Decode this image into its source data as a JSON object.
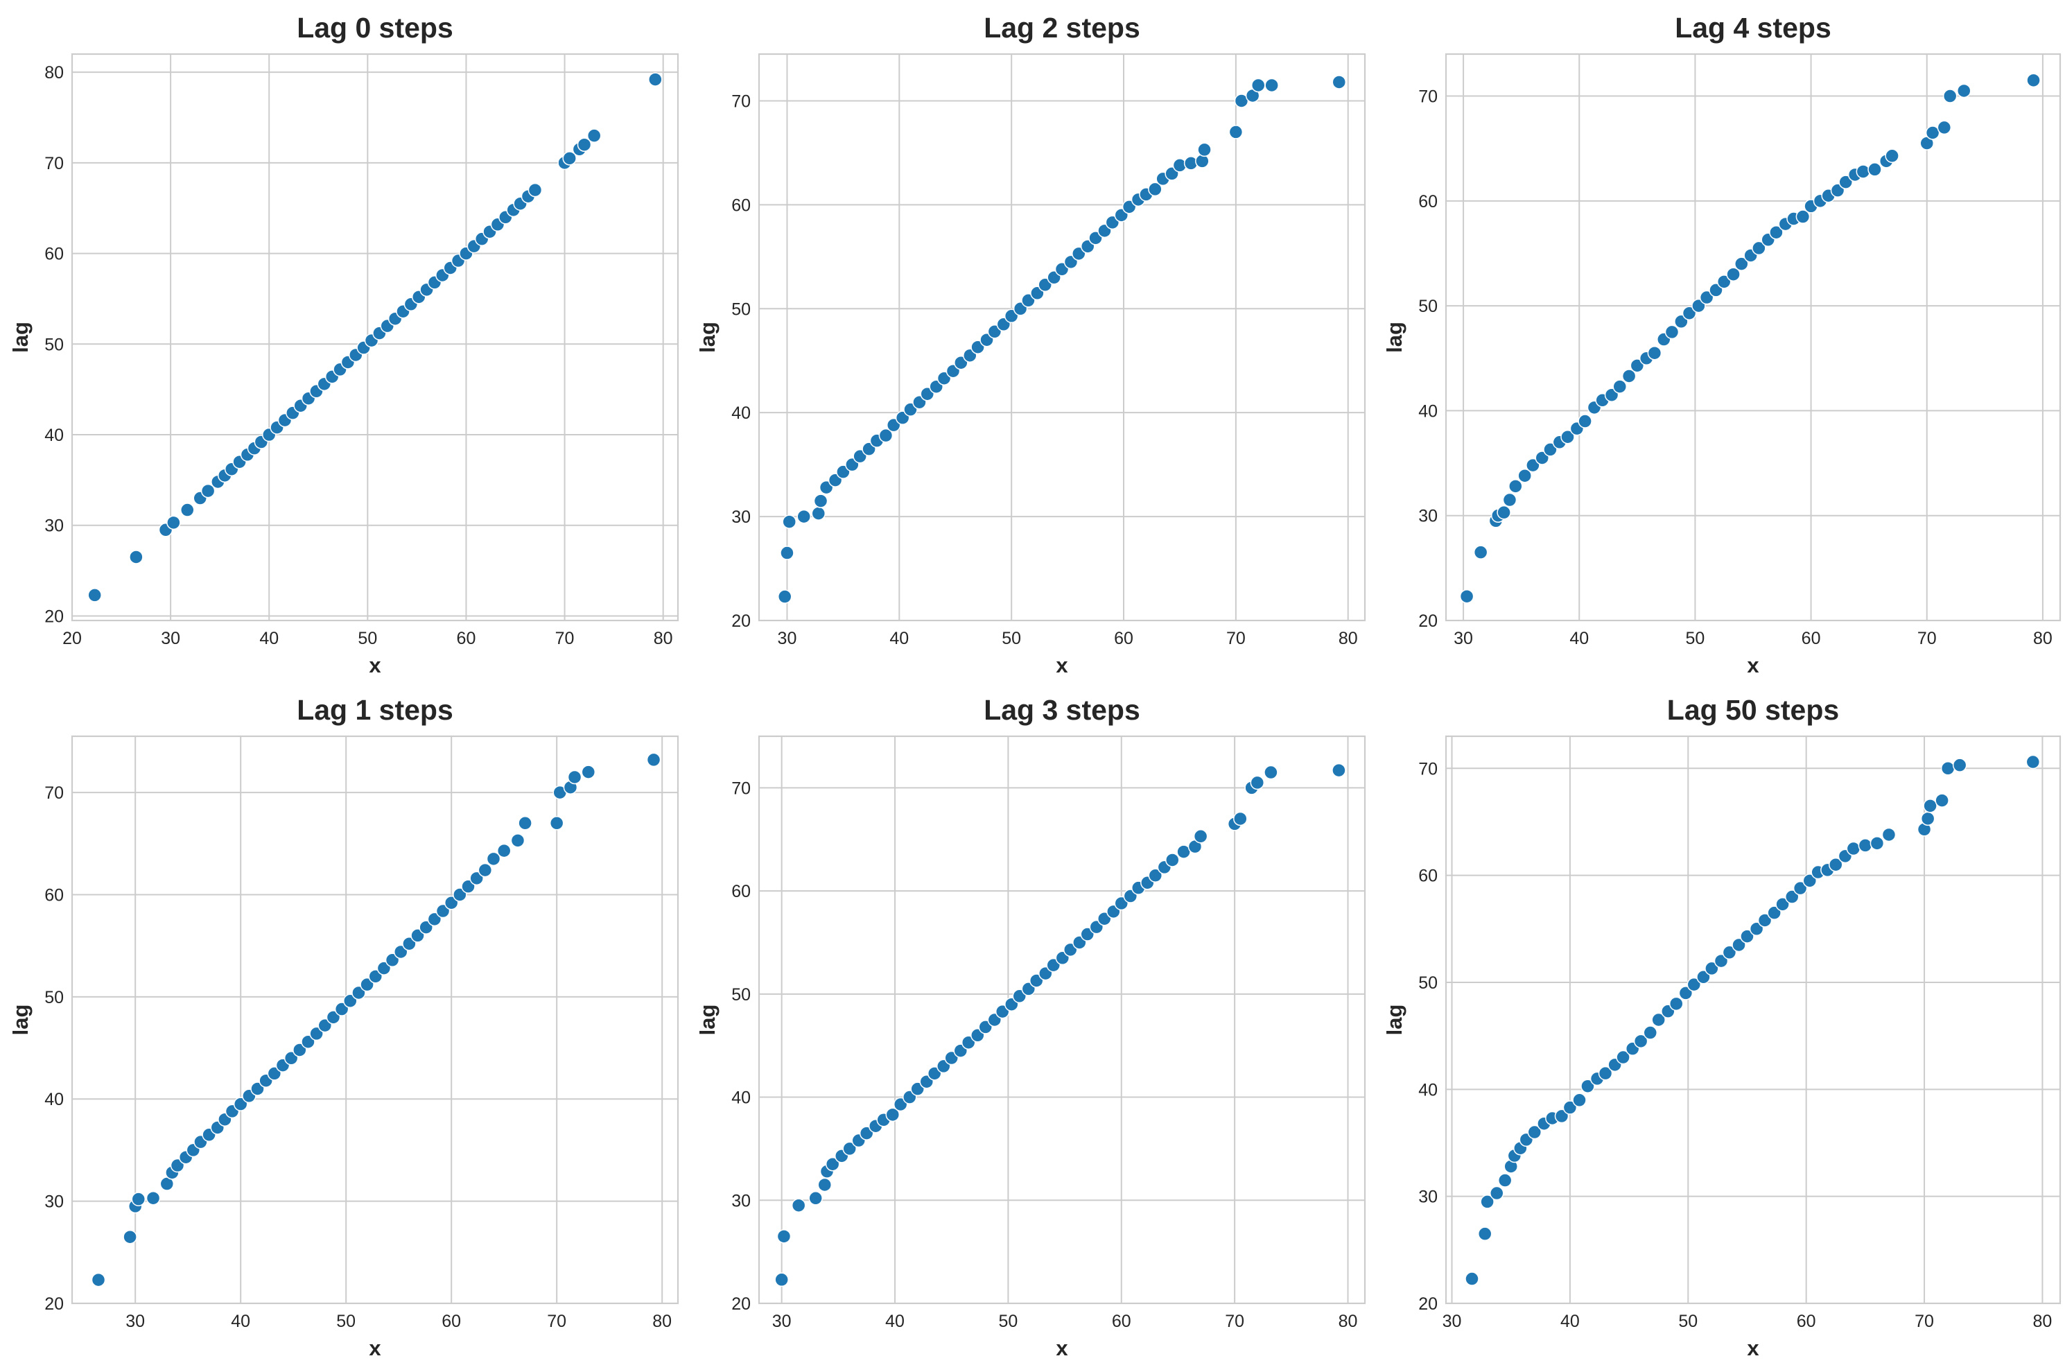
{
  "figure": {
    "background": "#ffffff",
    "marker_color": "#1f77b4",
    "grid_color": "#cccccc"
  },
  "chart_data": [
    {
      "type": "scatter",
      "title": "Lag 0 steps",
      "xlabel": "x",
      "ylabel": "lag",
      "xlim": [
        20,
        81.5
      ],
      "ylim": [
        19.5,
        82
      ],
      "xticks": [
        20,
        30,
        40,
        50,
        60,
        70,
        80
      ],
      "yticks": [
        20,
        30,
        40,
        50,
        60,
        70,
        80
      ],
      "grid": true,
      "x": [
        22.3,
        26.5,
        29.5,
        30.3,
        31.7,
        33.0,
        33.8,
        34.8,
        35.5,
        36.2,
        37.0,
        37.8,
        38.5,
        39.2,
        40.0,
        40.8,
        41.6,
        42.4,
        43.2,
        44.0,
        44.8,
        45.6,
        46.4,
        47.2,
        48.0,
        48.8,
        49.6,
        50.4,
        51.2,
        52.0,
        52.8,
        53.6,
        54.4,
        55.2,
        56.0,
        56.8,
        57.6,
        58.4,
        59.2,
        60.0,
        60.8,
        61.6,
        62.4,
        63.2,
        64.0,
        64.8,
        65.5,
        66.3,
        67.0,
        70.0,
        70.5,
        71.5,
        72.0,
        73.0,
        79.2
      ],
      "y": [
        22.3,
        26.5,
        29.5,
        30.3,
        31.7,
        33.0,
        33.8,
        34.8,
        35.5,
        36.2,
        37.0,
        37.8,
        38.5,
        39.2,
        40.0,
        40.8,
        41.6,
        42.4,
        43.2,
        44.0,
        44.8,
        45.6,
        46.4,
        47.2,
        48.0,
        48.8,
        49.6,
        50.4,
        51.2,
        52.0,
        52.8,
        53.6,
        54.4,
        55.2,
        56.0,
        56.8,
        57.6,
        58.4,
        59.2,
        60.0,
        60.8,
        61.6,
        62.4,
        63.2,
        64.0,
        64.8,
        65.5,
        66.3,
        67.0,
        70.0,
        70.5,
        71.5,
        72.0,
        73.0,
        79.2
      ]
    },
    {
      "type": "scatter",
      "title": "Lag 2 steps",
      "xlabel": "x",
      "ylabel": "lag",
      "xlim": [
        27.5,
        81.5
      ],
      "ylim": [
        20,
        74.5
      ],
      "xticks": [
        30,
        40,
        50,
        60,
        70,
        80
      ],
      "yticks": [
        20,
        30,
        40,
        50,
        60,
        70
      ],
      "grid": true,
      "x": [
        29.8,
        30.0,
        30.2,
        31.5,
        32.8,
        33.0,
        33.5,
        34.3,
        35.0,
        35.8,
        36.5,
        37.3,
        38.0,
        38.8,
        39.5,
        40.3,
        41.0,
        41.8,
        42.5,
        43.3,
        44.0,
        44.8,
        45.5,
        46.3,
        47.0,
        47.8,
        48.5,
        49.3,
        50.0,
        50.8,
        51.5,
        52.3,
        53.0,
        53.8,
        54.5,
        55.3,
        56.0,
        56.8,
        57.5,
        58.3,
        59.0,
        59.8,
        60.5,
        61.3,
        62.0,
        62.8,
        63.5,
        64.3,
        65.0,
        66.0,
        67.0,
        67.2,
        70.0,
        70.5,
        71.5,
        72.0,
        73.2,
        79.2
      ],
      "y": [
        22.3,
        26.5,
        29.5,
        30.0,
        30.3,
        31.5,
        32.8,
        33.5,
        34.3,
        35.0,
        35.8,
        36.5,
        37.3,
        37.8,
        38.8,
        39.5,
        40.3,
        41.0,
        41.8,
        42.5,
        43.3,
        44.0,
        44.8,
        45.5,
        46.3,
        47.0,
        47.8,
        48.5,
        49.3,
        50.0,
        50.8,
        51.5,
        52.3,
        53.0,
        53.8,
        54.5,
        55.3,
        56.0,
        56.8,
        57.5,
        58.3,
        59.0,
        59.8,
        60.5,
        61.0,
        61.5,
        62.5,
        63.0,
        63.8,
        64.0,
        64.2,
        65.3,
        67.0,
        70.0,
        70.5,
        71.5,
        71.5,
        71.8
      ]
    },
    {
      "type": "scatter",
      "title": "Lag 4 steps",
      "xlabel": "x",
      "ylabel": "lag",
      "xlim": [
        28.5,
        81.5
      ],
      "ylim": [
        20,
        74
      ],
      "xticks": [
        30,
        40,
        50,
        60,
        70,
        80
      ],
      "yticks": [
        20,
        30,
        40,
        50,
        60,
        70
      ],
      "grid": true,
      "x": [
        30.3,
        31.5,
        32.8,
        33.0,
        33.5,
        34.0,
        34.5,
        35.3,
        36.0,
        36.8,
        37.5,
        38.3,
        39.0,
        39.8,
        40.5,
        41.3,
        42.0,
        42.8,
        43.5,
        44.3,
        45.0,
        45.8,
        46.5,
        47.3,
        48.0,
        48.8,
        49.5,
        50.3,
        51.0,
        51.8,
        52.5,
        53.3,
        54.0,
        54.8,
        55.5,
        56.3,
        57.0,
        57.8,
        58.5,
        59.3,
        60.0,
        60.8,
        61.5,
        62.3,
        63.0,
        63.8,
        64.5,
        65.5,
        66.5,
        67.0,
        70.0,
        70.5,
        71.5,
        72.0,
        73.2,
        79.2
      ],
      "y": [
        22.3,
        26.5,
        29.5,
        30.0,
        30.3,
        31.5,
        32.8,
        33.8,
        34.8,
        35.5,
        36.3,
        37.0,
        37.5,
        38.3,
        39.0,
        40.3,
        41.0,
        41.5,
        42.3,
        43.3,
        44.3,
        45.0,
        45.5,
        46.8,
        47.5,
        48.5,
        49.3,
        50.0,
        50.8,
        51.5,
        52.3,
        53.0,
        54.0,
        54.8,
        55.5,
        56.3,
        57.0,
        57.8,
        58.3,
        58.5,
        59.5,
        60.0,
        60.5,
        61.0,
        61.8,
        62.5,
        62.8,
        63.0,
        63.8,
        64.3,
        65.5,
        66.5,
        67.0,
        70.0,
        70.5,
        71.5
      ],
      "_note": null
    },
    {
      "type": "scatter",
      "title": "Lag 1 steps",
      "xlabel": "x",
      "ylabel": "lag",
      "xlim": [
        24,
        81.5
      ],
      "ylim": [
        20,
        75.5
      ],
      "xticks": [
        30,
        40,
        50,
        60,
        70,
        80
      ],
      "yticks": [
        20,
        30,
        40,
        50,
        60,
        70
      ],
      "grid": true,
      "x": [
        26.5,
        29.5,
        30.0,
        30.3,
        31.7,
        33.0,
        33.5,
        34.0,
        34.8,
        35.5,
        36.2,
        37.0,
        37.8,
        38.5,
        39.2,
        40.0,
        40.8,
        41.6,
        42.4,
        43.2,
        44.0,
        44.8,
        45.6,
        46.4,
        47.2,
        48.0,
        48.8,
        49.6,
        50.4,
        51.2,
        52.0,
        52.8,
        53.6,
        54.4,
        55.2,
        56.0,
        56.8,
        57.6,
        58.4,
        59.2,
        60.0,
        60.8,
        61.6,
        62.4,
        63.2,
        64.0,
        65.0,
        66.3,
        67.0,
        70.0,
        70.3,
        71.3,
        71.7,
        73.0,
        79.2
      ],
      "y": [
        22.3,
        26.5,
        29.5,
        30.2,
        30.3,
        31.7,
        32.8,
        33.5,
        34.3,
        35.0,
        35.8,
        36.5,
        37.2,
        38.0,
        38.8,
        39.5,
        40.3,
        41.0,
        41.8,
        42.5,
        43.3,
        44.0,
        44.8,
        45.6,
        46.4,
        47.2,
        48.0,
        48.8,
        49.6,
        50.4,
        51.2,
        52.0,
        52.8,
        53.6,
        54.4,
        55.2,
        56.0,
        56.8,
        57.6,
        58.4,
        59.2,
        60.0,
        60.8,
        61.6,
        62.4,
        63.5,
        64.3,
        65.3,
        67.0,
        67.0,
        70.0,
        70.5,
        71.5,
        72.0,
        73.2
      ]
    },
    {
      "type": "scatter",
      "title": "Lag 3 steps",
      "xlabel": "x",
      "ylabel": "lag",
      "xlim": [
        28,
        81.5
      ],
      "ylim": [
        20,
        75
      ],
      "xticks": [
        30,
        40,
        50,
        60,
        70,
        80
      ],
      "yticks": [
        20,
        30,
        40,
        50,
        60,
        70
      ],
      "grid": true,
      "x": [
        30.0,
        30.2,
        31.5,
        33.0,
        33.8,
        34.0,
        34.5,
        35.3,
        36.0,
        36.8,
        37.5,
        38.3,
        39.0,
        39.8,
        40.5,
        41.3,
        42.0,
        42.8,
        43.5,
        44.3,
        45.0,
        45.8,
        46.5,
        47.3,
        48.0,
        48.8,
        49.5,
        50.3,
        51.0,
        51.8,
        52.5,
        53.3,
        54.0,
        54.8,
        55.5,
        56.3,
        57.0,
        57.8,
        58.5,
        59.3,
        60.0,
        60.8,
        61.5,
        62.3,
        63.0,
        63.8,
        64.5,
        65.5,
        66.5,
        67.0,
        70.0,
        70.5,
        71.5,
        72.0,
        73.2,
        79.2
      ],
      "y": [
        22.3,
        26.5,
        29.5,
        30.2,
        31.5,
        32.8,
        33.5,
        34.3,
        35.0,
        35.8,
        36.5,
        37.2,
        37.8,
        38.3,
        39.3,
        40.0,
        40.8,
        41.5,
        42.3,
        43.0,
        43.8,
        44.5,
        45.3,
        46.0,
        46.8,
        47.5,
        48.3,
        49.0,
        49.8,
        50.5,
        51.3,
        52.0,
        52.8,
        53.5,
        54.3,
        55.0,
        55.8,
        56.5,
        57.3,
        58.0,
        58.8,
        59.5,
        60.3,
        60.8,
        61.5,
        62.3,
        63.0,
        63.8,
        64.3,
        65.3,
        66.5,
        67.0,
        70.0,
        70.5,
        71.5,
        71.7
      ]
    },
    {
      "type": "scatter",
      "title": "Lag 50 steps",
      "xlabel": "x",
      "ylabel": "lag",
      "xlim": [
        29.5,
        81.5
      ],
      "ylim": [
        20,
        73
      ],
      "xticks": [
        30,
        40,
        50,
        60,
        70,
        80
      ],
      "yticks": [
        20,
        30,
        40,
        50,
        60,
        70
      ],
      "grid": true,
      "x": [
        31.7,
        32.8,
        33.0,
        33.8,
        34.5,
        35.0,
        35.3,
        35.8,
        36.3,
        37.0,
        37.8,
        38.5,
        39.3,
        40.0,
        40.8,
        41.5,
        42.3,
        43.0,
        43.8,
        44.5,
        45.3,
        46.0,
        46.8,
        47.5,
        48.3,
        49.0,
        49.8,
        50.5,
        51.3,
        52.0,
        52.8,
        53.5,
        54.3,
        55.0,
        55.8,
        56.5,
        57.3,
        58.0,
        58.8,
        59.5,
        60.3,
        61.0,
        61.8,
        62.5,
        63.3,
        64.0,
        65.0,
        66.0,
        67.0,
        70.0,
        70.3,
        70.5,
        71.5,
        72.0,
        73.0,
        79.2
      ],
      "y": [
        22.3,
        26.5,
        29.5,
        30.3,
        31.5,
        32.8,
        33.8,
        34.5,
        35.3,
        36.0,
        36.8,
        37.3,
        37.5,
        38.3,
        39.0,
        40.3,
        41.0,
        41.5,
        42.3,
        43.0,
        43.8,
        44.5,
        45.3,
        46.5,
        47.3,
        48.0,
        49.0,
        49.8,
        50.5,
        51.3,
        52.0,
        52.8,
        53.5,
        54.3,
        55.0,
        55.8,
        56.5,
        57.3,
        58.0,
        58.8,
        59.5,
        60.3,
        60.5,
        61.0,
        61.8,
        62.5,
        62.8,
        63.0,
        63.8,
        64.3,
        65.3,
        66.5,
        67.0,
        70.0,
        70.3,
        70.6
      ]
    }
  ]
}
